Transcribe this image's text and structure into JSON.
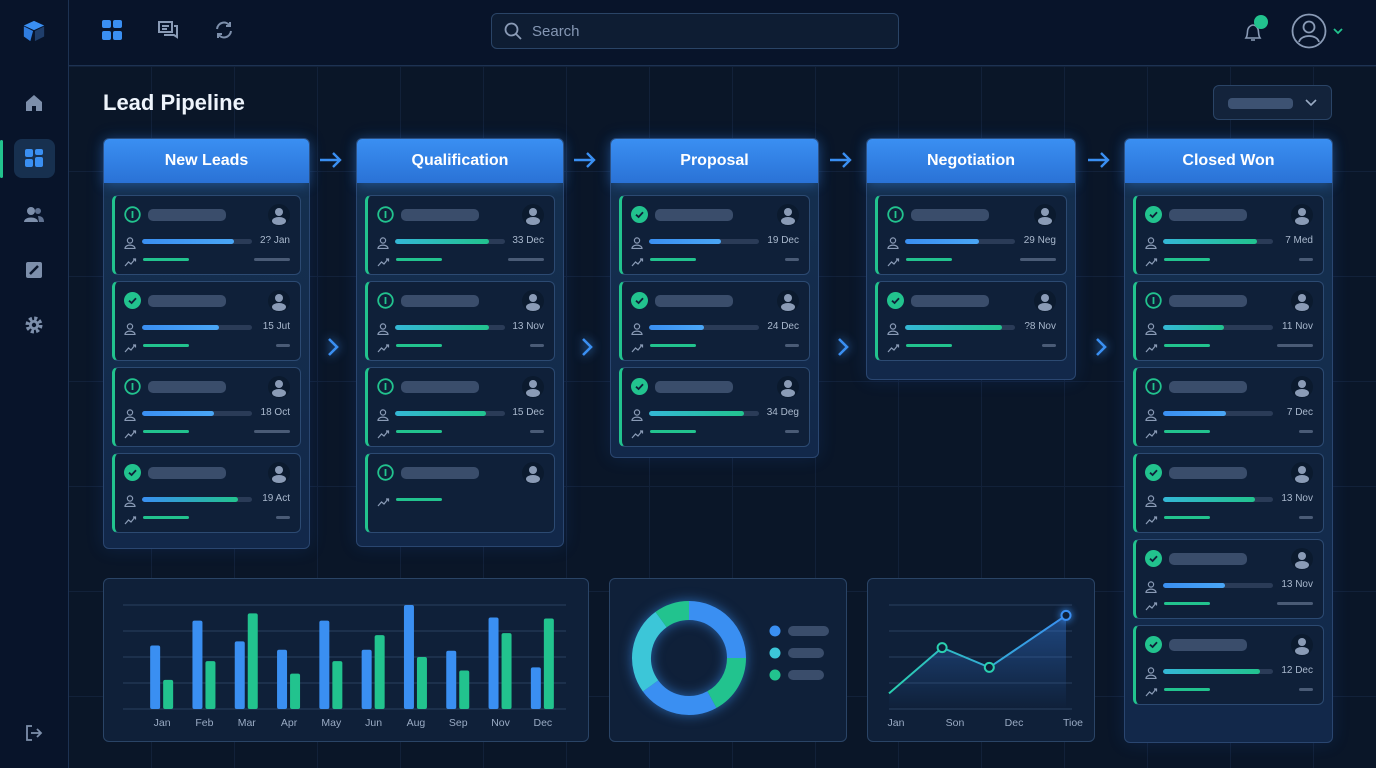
{
  "sidebar": {
    "items": [
      {
        "icon": "home-icon",
        "label": "Home"
      },
      {
        "icon": "dashboard-icon",
        "label": "Dashboard",
        "active": true
      },
      {
        "icon": "users-icon",
        "label": "Users"
      },
      {
        "icon": "edit-icon",
        "label": "Edit"
      },
      {
        "icon": "gear-icon",
        "label": "Settings"
      }
    ],
    "logout_icon": "logout-icon",
    "logo_icon": "cube-logo-icon"
  },
  "topbar": {
    "icons": [
      "grid-icon",
      "chat-icon",
      "refresh-icon"
    ],
    "search_placeholder": "Search",
    "notification_dot": true
  },
  "page": {
    "title": "Lead Pipeline"
  },
  "colors": {
    "accent": "#3a8ff2",
    "green": "#22c38e",
    "cyan": "#3cc6d8",
    "bg": "#0a1628"
  },
  "columns": [
    {
      "title": "New Leads",
      "cards": [
        {
          "status": "info",
          "progress": 0.84,
          "fill": "blue",
          "date": "2? Jan",
          "dash": "long"
        },
        {
          "status": "check",
          "progress": 0.7,
          "fill": "blue",
          "date": "15 Jut",
          "dash": "short"
        },
        {
          "status": "info",
          "progress": 0.65,
          "fill": "blue",
          "date": "18 Oct",
          "dash": "long"
        },
        {
          "status": "check",
          "progress": 0.87,
          "fill": "mix",
          "date": "19 Act",
          "dash": "short"
        }
      ]
    },
    {
      "title": "Qualification",
      "cards": [
        {
          "status": "info",
          "progress": 0.85,
          "fill": "green",
          "date": "33 Dec",
          "dash": "long"
        },
        {
          "status": "info",
          "progress": 0.85,
          "fill": "green",
          "date": "13 Nov",
          "dash": "short"
        },
        {
          "status": "info",
          "progress": 0.83,
          "fill": "green",
          "date": "15 Dec",
          "dash": "short"
        },
        {
          "status": "info",
          "progress": null,
          "fill": "",
          "date": "",
          "dash": ""
        }
      ]
    },
    {
      "title": "Proposal",
      "cards": [
        {
          "status": "check",
          "progress": 0.65,
          "fill": "blue",
          "date": "19 Dec",
          "dash": "short"
        },
        {
          "status": "check",
          "progress": 0.5,
          "fill": "blue",
          "date": "24 Dec",
          "dash": "short"
        },
        {
          "status": "check",
          "progress": 0.86,
          "fill": "green",
          "date": "34 Deg",
          "dash": "short"
        }
      ]
    },
    {
      "title": "Negotiation",
      "cards": [
        {
          "status": "info",
          "progress": 0.67,
          "fill": "blue",
          "date": "29 Neg",
          "dash": "long"
        },
        {
          "status": "check",
          "progress": 0.88,
          "fill": "green",
          "date": "?8 Nov",
          "dash": "short"
        }
      ]
    },
    {
      "title": "Closed Won",
      "cards": [
        {
          "status": "check",
          "progress": 0.85,
          "fill": "green",
          "date": "7 Med",
          "dash": "short"
        },
        {
          "status": "info",
          "progress": 0.55,
          "fill": "green",
          "date": "11 Nov",
          "dash": "long"
        },
        {
          "status": "info",
          "progress": 0.57,
          "fill": "blue",
          "date": "7 Dec",
          "dash": "short"
        },
        {
          "status": "check",
          "progress": 0.84,
          "fill": "green",
          "date": "13 Nov",
          "dash": "short"
        },
        {
          "status": "check",
          "progress": 0.56,
          "fill": "blue",
          "date": "13 Nov",
          "dash": "long"
        },
        {
          "status": "check",
          "progress": 0.88,
          "fill": "green",
          "date": "12 Dec",
          "dash": "short"
        }
      ]
    }
  ],
  "chart_data": [
    {
      "type": "bar",
      "categories": [
        "Jan",
        "Feb",
        "Mar",
        "Apr",
        "May",
        "Jun",
        "Aug",
        "Sep",
        "Nov",
        "Dec"
      ],
      "series": [
        {
          "color": "#3a8ff2",
          "values": [
            61,
            85,
            65,
            57,
            85,
            57,
            100,
            56,
            88,
            40
          ]
        },
        {
          "color": "#22c38e",
          "values": [
            28,
            46,
            92,
            34,
            46,
            71,
            50,
            37,
            73,
            87
          ]
        }
      ],
      "ylim": [
        0,
        100
      ],
      "grid": true
    },
    {
      "type": "pie",
      "donut": true,
      "segments": [
        {
          "value": 25,
          "color": "#3a8ff2"
        },
        {
          "value": 17,
          "color": "#22c38e"
        },
        {
          "value": 23,
          "color": "#3a8ff2"
        },
        {
          "value": 25,
          "color": "#3cc6d8"
        },
        {
          "value": 10,
          "color": "#22c38e"
        }
      ],
      "legend": [
        {
          "color": "#3a8ff2"
        },
        {
          "color": "#3cc6d8"
        },
        {
          "color": "#22c38e"
        }
      ]
    },
    {
      "type": "area",
      "categories": [
        "Jan",
        "Son",
        "Dec",
        "Tioe"
      ],
      "x": [
        0,
        0.9,
        1.7,
        3
      ],
      "values": [
        15,
        59,
        40,
        90
      ],
      "ylim": [
        0,
        100
      ],
      "grid": true
    }
  ]
}
